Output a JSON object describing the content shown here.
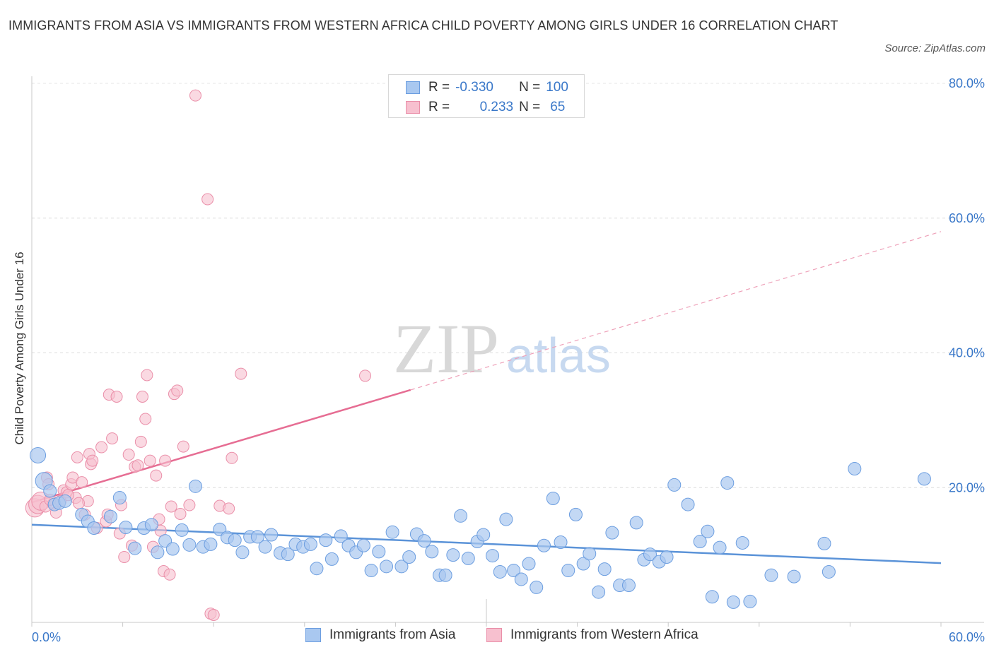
{
  "header": {
    "title": "IMMIGRANTS FROM ASIA VS IMMIGRANTS FROM WESTERN AFRICA CHILD POVERTY AMONG GIRLS UNDER 16 CORRELATION CHART",
    "source": "Source: ZipAtlas.com"
  },
  "legend": {
    "r_label": "R =",
    "n_label": "N =",
    "rows": [
      {
        "r": "-0.330",
        "n": "100",
        "color": "#a9c8f0",
        "border": "#6c9ee0"
      },
      {
        "r": "0.233",
        "n": "65",
        "color": "#f7c0cf",
        "border": "#ea8fa9"
      }
    ]
  },
  "watermark": {
    "zip": "ZIP",
    "atlas": "atlas"
  },
  "colors": {
    "asia": "#5b93d8",
    "asia_fill": "#a9c8f0",
    "wafrica": "#e66d93",
    "wafrica_fill": "#f7c0cf",
    "axis_text": "#3a78c9"
  },
  "chart_data": {
    "type": "scatter",
    "title": "IMMIGRANTS FROM ASIA VS IMMIGRANTS FROM WESTERN AFRICA CHILD POVERTY AMONG GIRLS UNDER 16 CORRELATION CHART",
    "xlabel": "",
    "ylabel": "Child Poverty Among Girls Under 16",
    "xlim": [
      0,
      60
    ],
    "ylim": [
      0,
      80
    ],
    "x_tick_labels": [
      "0.0%",
      "60.0%"
    ],
    "y_tick_labels": [
      "20.0%",
      "40.0%",
      "60.0%",
      "80.0%"
    ],
    "y_ticks": [
      20,
      40,
      60,
      80
    ],
    "grid": true,
    "series": [
      {
        "name": "Immigrants from Asia",
        "r": -0.33,
        "n": 100,
        "trend": {
          "x": [
            0,
            60
          ],
          "y": [
            14.5,
            8.8
          ],
          "style": "solid"
        },
        "points": [
          [
            0.4,
            24.8
          ],
          [
            0.8,
            21.0
          ],
          [
            1.2,
            19.5
          ],
          [
            1.5,
            17.5
          ],
          [
            1.8,
            17.7
          ],
          [
            2.2,
            18.0
          ],
          [
            3.3,
            16.0
          ],
          [
            3.7,
            15.0
          ],
          [
            4.1,
            14.0
          ],
          [
            5.2,
            15.7
          ],
          [
            5.8,
            18.5
          ],
          [
            6.2,
            14.1
          ],
          [
            6.8,
            11.0
          ],
          [
            7.4,
            14.0
          ],
          [
            7.9,
            14.5
          ],
          [
            8.3,
            10.4
          ],
          [
            8.8,
            12.1
          ],
          [
            9.3,
            10.9
          ],
          [
            9.9,
            13.7
          ],
          [
            10.4,
            11.5
          ],
          [
            10.8,
            20.2
          ],
          [
            11.3,
            11.2
          ],
          [
            11.8,
            11.6
          ],
          [
            12.4,
            13.8
          ],
          [
            12.9,
            12.6
          ],
          [
            13.4,
            12.2
          ],
          [
            13.9,
            10.4
          ],
          [
            14.4,
            12.7
          ],
          [
            14.9,
            12.7
          ],
          [
            15.4,
            11.2
          ],
          [
            15.8,
            13.0
          ],
          [
            16.4,
            10.3
          ],
          [
            16.9,
            10.1
          ],
          [
            17.4,
            11.6
          ],
          [
            17.9,
            11.2
          ],
          [
            18.4,
            11.6
          ],
          [
            18.8,
            8.0
          ],
          [
            19.4,
            12.2
          ],
          [
            19.8,
            9.4
          ],
          [
            20.4,
            12.8
          ],
          [
            20.9,
            11.4
          ],
          [
            21.4,
            10.4
          ],
          [
            21.9,
            11.4
          ],
          [
            22.4,
            7.7
          ],
          [
            22.9,
            10.5
          ],
          [
            23.4,
            8.3
          ],
          [
            23.8,
            13.4
          ],
          [
            24.4,
            8.3
          ],
          [
            24.9,
            9.7
          ],
          [
            25.4,
            13.1
          ],
          [
            25.9,
            12.1
          ],
          [
            26.4,
            10.5
          ],
          [
            26.9,
            7.0
          ],
          [
            27.3,
            7.0
          ],
          [
            27.8,
            10.0
          ],
          [
            28.3,
            15.8
          ],
          [
            28.8,
            9.5
          ],
          [
            29.4,
            12.0
          ],
          [
            29.8,
            13.0
          ],
          [
            30.4,
            9.9
          ],
          [
            30.9,
            7.5
          ],
          [
            31.3,
            15.3
          ],
          [
            31.8,
            7.7
          ],
          [
            32.3,
            6.4
          ],
          [
            32.8,
            8.7
          ],
          [
            33.3,
            5.2
          ],
          [
            33.8,
            11.4
          ],
          [
            34.4,
            18.4
          ],
          [
            34.9,
            11.9
          ],
          [
            35.4,
            7.7
          ],
          [
            35.9,
            16.0
          ],
          [
            36.4,
            8.7
          ],
          [
            36.8,
            10.2
          ],
          [
            37.4,
            4.5
          ],
          [
            37.8,
            7.9
          ],
          [
            38.3,
            13.3
          ],
          [
            38.8,
            5.5
          ],
          [
            39.4,
            5.5
          ],
          [
            39.9,
            14.8
          ],
          [
            40.4,
            9.3
          ],
          [
            40.8,
            10.1
          ],
          [
            41.4,
            9.0
          ],
          [
            41.9,
            9.7
          ],
          [
            42.4,
            20.4
          ],
          [
            43.3,
            17.5
          ],
          [
            44.1,
            12.0
          ],
          [
            44.6,
            13.5
          ],
          [
            44.9,
            3.8
          ],
          [
            45.4,
            11.1
          ],
          [
            45.9,
            20.7
          ],
          [
            46.3,
            3.0
          ],
          [
            46.9,
            11.8
          ],
          [
            47.4,
            3.1
          ],
          [
            48.8,
            7.0
          ],
          [
            50.3,
            6.8
          ],
          [
            52.3,
            11.7
          ],
          [
            52.6,
            7.5
          ],
          [
            54.3,
            22.8
          ],
          [
            58.9,
            21.3
          ]
        ]
      },
      {
        "name": "Immigrants from Western Africa",
        "r": 0.233,
        "n": 65,
        "trend": {
          "x": [
            0,
            25
          ],
          "y": [
            17.8,
            34.5
          ],
          "dashed_x": [
            25,
            60
          ],
          "dashed_y": [
            34.5,
            58.0
          ]
        },
        "points": [
          [
            0.2,
            17.0
          ],
          [
            0.4,
            17.5
          ],
          [
            0.6,
            18.0
          ],
          [
            0.9,
            17.2
          ],
          [
            1.0,
            21.5
          ],
          [
            1.1,
            20.5
          ],
          [
            1.4,
            17.6
          ],
          [
            1.6,
            16.3
          ],
          [
            1.9,
            18.0
          ],
          [
            2.1,
            19.6
          ],
          [
            2.3,
            19.3
          ],
          [
            2.6,
            20.5
          ],
          [
            2.7,
            21.5
          ],
          [
            2.9,
            18.5
          ],
          [
            3.0,
            24.5
          ],
          [
            3.3,
            20.8
          ],
          [
            3.5,
            16.0
          ],
          [
            3.7,
            18.0
          ],
          [
            3.8,
            25.0
          ],
          [
            3.9,
            23.5
          ],
          [
            4.0,
            24.0
          ],
          [
            4.3,
            14.0
          ],
          [
            4.6,
            26.0
          ],
          [
            4.9,
            15.0
          ],
          [
            5.1,
            33.8
          ],
          [
            5.3,
            27.3
          ],
          [
            5.6,
            33.5
          ],
          [
            5.8,
            13.2
          ],
          [
            5.9,
            17.4
          ],
          [
            6.1,
            9.7
          ],
          [
            6.4,
            24.9
          ],
          [
            6.6,
            11.4
          ],
          [
            6.8,
            23.1
          ],
          [
            7.0,
            23.3
          ],
          [
            7.2,
            26.8
          ],
          [
            7.3,
            33.5
          ],
          [
            7.5,
            30.2
          ],
          [
            7.6,
            36.7
          ],
          [
            7.8,
            24.0
          ],
          [
            8.0,
            11.2
          ],
          [
            8.2,
            21.8
          ],
          [
            8.4,
            15.3
          ],
          [
            8.5,
            13.6
          ],
          [
            8.7,
            7.6
          ],
          [
            8.8,
            24.0
          ],
          [
            9.1,
            7.1
          ],
          [
            9.2,
            17.2
          ],
          [
            9.4,
            33.9
          ],
          [
            9.6,
            34.4
          ],
          [
            9.8,
            16.1
          ],
          [
            10.0,
            26.1
          ],
          [
            10.4,
            17.4
          ],
          [
            10.8,
            78.2
          ],
          [
            11.6,
            62.8
          ],
          [
            11.8,
            1.3
          ],
          [
            12.0,
            1.1
          ],
          [
            12.4,
            17.3
          ],
          [
            13.0,
            16.9
          ],
          [
            13.2,
            24.4
          ],
          [
            13.8,
            36.9
          ],
          [
            22.0,
            36.6
          ],
          [
            1.2,
            18.2
          ],
          [
            2.4,
            18.9
          ],
          [
            3.1,
            17.7
          ],
          [
            5.0,
            16.0
          ]
        ]
      }
    ]
  },
  "bottom_legend": [
    "Immigrants from Asia",
    "Immigrants from Western Africa"
  ]
}
